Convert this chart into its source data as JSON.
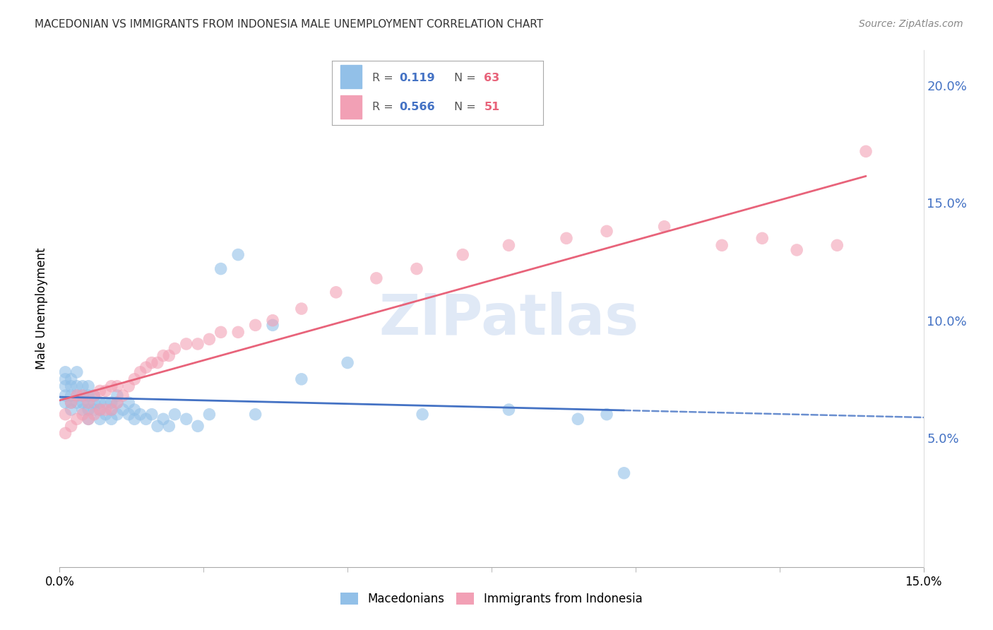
{
  "title": "MACEDONIAN VS IMMIGRANTS FROM INDONESIA MALE UNEMPLOYMENT CORRELATION CHART",
  "source": "Source: ZipAtlas.com",
  "ylabel": "Male Unemployment",
  "xmin": 0.0,
  "xmax": 0.15,
  "ymin": -0.005,
  "ymax": 0.215,
  "yticks": [
    0.05,
    0.1,
    0.15,
    0.2
  ],
  "xtick_labels": [
    "0.0%",
    "15.0%"
  ],
  "xtick_positions": [
    0.0,
    0.15
  ],
  "legend1_label": "Macedonians",
  "legend2_label": "Immigrants from Indonesia",
  "r1": 0.119,
  "n1": 63,
  "r2": 0.566,
  "n2": 51,
  "color1": "#92C0E8",
  "color2": "#F2A0B5",
  "line_color1": "#4472C4",
  "line_color2": "#E8637A",
  "watermark_text": "ZIPatlas",
  "macedonian_x": [
    0.001,
    0.001,
    0.001,
    0.001,
    0.001,
    0.002,
    0.002,
    0.002,
    0.002,
    0.002,
    0.003,
    0.003,
    0.003,
    0.003,
    0.004,
    0.004,
    0.004,
    0.004,
    0.005,
    0.005,
    0.005,
    0.005,
    0.005,
    0.006,
    0.006,
    0.006,
    0.007,
    0.007,
    0.007,
    0.008,
    0.008,
    0.009,
    0.009,
    0.009,
    0.01,
    0.01,
    0.01,
    0.011,
    0.012,
    0.012,
    0.013,
    0.013,
    0.014,
    0.015,
    0.016,
    0.017,
    0.018,
    0.019,
    0.02,
    0.022,
    0.024,
    0.026,
    0.028,
    0.031,
    0.034,
    0.037,
    0.042,
    0.05,
    0.063,
    0.078,
    0.09,
    0.095,
    0.098
  ],
  "macedonian_y": [
    0.065,
    0.068,
    0.072,
    0.075,
    0.078,
    0.062,
    0.065,
    0.068,
    0.072,
    0.075,
    0.065,
    0.068,
    0.072,
    0.078,
    0.062,
    0.065,
    0.068,
    0.072,
    0.058,
    0.062,
    0.065,
    0.068,
    0.072,
    0.062,
    0.065,
    0.068,
    0.058,
    0.062,
    0.065,
    0.06,
    0.065,
    0.058,
    0.062,
    0.065,
    0.06,
    0.065,
    0.068,
    0.062,
    0.06,
    0.065,
    0.058,
    0.062,
    0.06,
    0.058,
    0.06,
    0.055,
    0.058,
    0.055,
    0.06,
    0.058,
    0.055,
    0.06,
    0.122,
    0.128,
    0.06,
    0.098,
    0.075,
    0.082,
    0.06,
    0.062,
    0.058,
    0.06,
    0.035
  ],
  "indonesia_x": [
    0.001,
    0.001,
    0.002,
    0.002,
    0.003,
    0.003,
    0.004,
    0.004,
    0.005,
    0.005,
    0.006,
    0.006,
    0.007,
    0.007,
    0.008,
    0.008,
    0.009,
    0.009,
    0.01,
    0.01,
    0.011,
    0.012,
    0.013,
    0.014,
    0.015,
    0.016,
    0.017,
    0.018,
    0.019,
    0.02,
    0.022,
    0.024,
    0.026,
    0.028,
    0.031,
    0.034,
    0.037,
    0.042,
    0.048,
    0.055,
    0.062,
    0.07,
    0.078,
    0.088,
    0.095,
    0.105,
    0.115,
    0.122,
    0.128,
    0.135,
    0.14
  ],
  "indonesia_y": [
    0.052,
    0.06,
    0.055,
    0.065,
    0.058,
    0.068,
    0.06,
    0.068,
    0.058,
    0.065,
    0.06,
    0.068,
    0.062,
    0.07,
    0.062,
    0.07,
    0.062,
    0.072,
    0.065,
    0.072,
    0.068,
    0.072,
    0.075,
    0.078,
    0.08,
    0.082,
    0.082,
    0.085,
    0.085,
    0.088,
    0.09,
    0.09,
    0.092,
    0.095,
    0.095,
    0.098,
    0.1,
    0.105,
    0.112,
    0.118,
    0.122,
    0.128,
    0.132,
    0.135,
    0.138,
    0.14,
    0.132,
    0.135,
    0.13,
    0.132,
    0.172
  ]
}
